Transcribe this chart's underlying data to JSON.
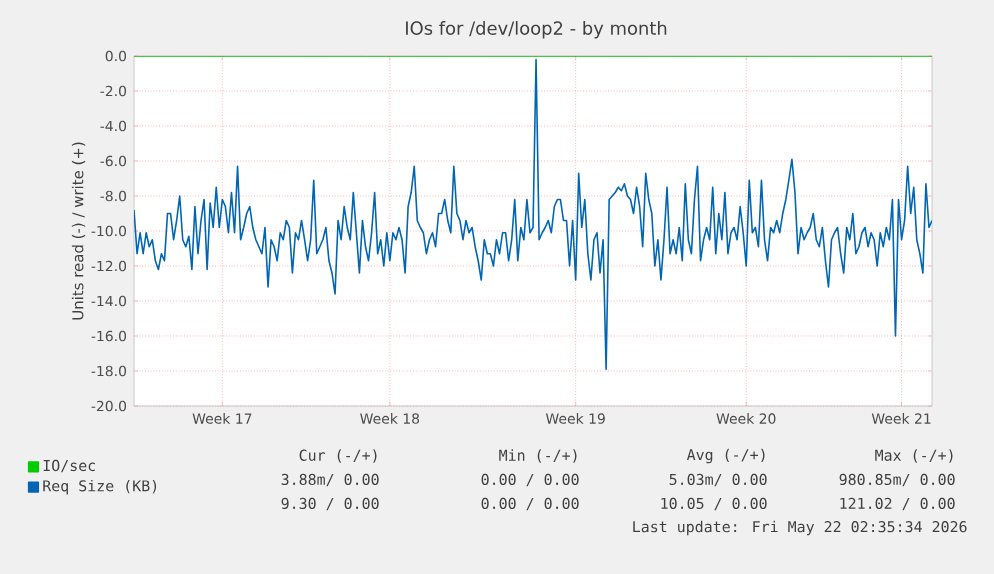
{
  "chart_data": {
    "type": "line",
    "title": "IOs for /dev/loop2 - by month",
    "ylabel": "Units read (-) / write (+)",
    "categories": [
      null,
      null,
      null,
      null,
      null,
      null,
      null,
      null,
      null,
      null,
      null,
      null,
      null,
      null,
      null,
      null,
      null,
      null,
      null,
      null,
      null,
      null,
      null,
      null,
      null,
      null,
      null,
      null,
      null,
      "Week 17",
      null,
      null,
      null,
      null,
      null,
      null,
      null,
      null,
      null,
      null,
      null,
      null,
      null,
      null,
      null,
      null,
      null,
      null,
      null,
      null,
      null,
      null,
      null,
      null,
      null,
      null,
      null,
      null,
      null,
      null,
      null,
      null,
      null,
      null,
      null,
      null,
      null,
      null,
      null,
      null,
      null,
      null,
      null,
      null,
      null,
      null,
      null,
      null,
      null,
      null,
      null,
      null,
      null,
      null,
      "Week 18",
      null,
      null,
      null,
      null,
      null,
      null,
      null,
      null,
      null,
      null,
      null,
      null,
      null,
      null,
      null,
      null,
      null,
      null,
      null,
      null,
      null,
      null,
      null,
      null,
      null,
      null,
      null,
      null,
      null,
      null,
      null,
      null,
      null,
      null,
      null,
      null,
      null,
      null,
      null,
      null,
      null,
      null,
      null,
      null,
      null,
      null,
      null,
      null,
      null,
      null,
      null,
      null,
      null,
      null,
      null,
      null,
      null,
      null,
      null,
      null,
      "Week 19",
      null,
      null,
      null,
      null,
      null,
      null,
      null,
      null,
      null,
      null,
      null,
      null,
      null,
      null,
      null,
      null,
      null,
      null,
      null,
      null,
      null,
      null,
      null,
      null,
      null,
      null,
      null,
      null,
      null,
      null,
      null,
      null,
      null,
      null,
      null,
      null,
      null,
      null,
      null,
      null,
      null,
      null,
      null,
      null,
      null,
      null,
      null,
      null,
      null,
      null,
      null,
      null,
      null,
      null,
      null,
      "Week 20",
      null,
      null,
      null,
      null,
      null,
      null,
      null,
      null,
      null,
      null,
      null,
      null,
      null,
      null,
      null,
      null,
      null,
      null,
      null,
      null,
      null,
      null,
      null,
      null,
      null,
      null,
      null,
      null,
      null,
      null,
      null,
      null,
      null,
      null,
      null,
      null,
      null,
      null,
      null,
      null,
      null,
      null,
      null,
      null,
      null,
      null,
      null,
      null,
      null,
      null,
      "Week 21",
      null,
      null,
      null,
      null,
      null,
      null,
      null,
      null,
      null,
      null
    ],
    "ylim": [
      -20,
      0
    ],
    "yticks": [
      {
        "value": 0,
        "label": "0.0"
      },
      {
        "value": -2,
        "label": "-2.0"
      },
      {
        "value": -4,
        "label": "-4.0"
      },
      {
        "value": -6,
        "label": "-6.0"
      },
      {
        "value": -8,
        "label": "-8.0"
      },
      {
        "value": -10,
        "label": "-10.0"
      },
      {
        "value": -12,
        "label": "-12.0"
      },
      {
        "value": -14,
        "label": "-14.0"
      },
      {
        "value": -16,
        "label": "-16.0"
      },
      {
        "value": -18,
        "label": "-18.0"
      },
      {
        "value": -20,
        "label": "-20.0"
      }
    ],
    "grid": true,
    "legend": "bottom",
    "series": [
      {
        "name": "IO/sec",
        "color": "#00cc00",
        "values": [
          0,
          0,
          0,
          0,
          0,
          0,
          0,
          0,
          0,
          0,
          0,
          0,
          0,
          0,
          0,
          0,
          0,
          0,
          0,
          0,
          0,
          0,
          0,
          0,
          0,
          0,
          0,
          0,
          0,
          0,
          0,
          0,
          0,
          0,
          0,
          0,
          0,
          0,
          0,
          0,
          0,
          0,
          0,
          0,
          0,
          0,
          0,
          0,
          0,
          0,
          0,
          0,
          0,
          0,
          0,
          0,
          0,
          0,
          0,
          0,
          0,
          0,
          0,
          0,
          0,
          0,
          0,
          0,
          0,
          0,
          0,
          0,
          0,
          0,
          0,
          0,
          0,
          0,
          0,
          0,
          0,
          0,
          0,
          0,
          0,
          0,
          0,
          0,
          0,
          0,
          0,
          0,
          0,
          0,
          0,
          0,
          0,
          0,
          0,
          0,
          0,
          0,
          0,
          0,
          0,
          0,
          0,
          0,
          0,
          0,
          0,
          0,
          0,
          0,
          0,
          0,
          0,
          0,
          0,
          0,
          0,
          0,
          0,
          0,
          0,
          0,
          0,
          0,
          0,
          0,
          0,
          0,
          0,
          0,
          0,
          0,
          0,
          0,
          0,
          0,
          0,
          0,
          0,
          0,
          0,
          0,
          0,
          0,
          0,
          0,
          0,
          0,
          0,
          0,
          0,
          0,
          0,
          0,
          0,
          0,
          0,
          0,
          0,
          0,
          0,
          0,
          0,
          0,
          0,
          0,
          0,
          0,
          0,
          0,
          0,
          0,
          0,
          0,
          0,
          0,
          0,
          0,
          0,
          0,
          0,
          0,
          0,
          0,
          0,
          0,
          0,
          0,
          0,
          0,
          0,
          0,
          0,
          0,
          0,
          0,
          0,
          0,
          0,
          0,
          0,
          0,
          0,
          0,
          0,
          0,
          0,
          0,
          0,
          0,
          0,
          0,
          0,
          0,
          0,
          0,
          0,
          0,
          0,
          0,
          0,
          0,
          0,
          0,
          0,
          0,
          0,
          0,
          0,
          0,
          0,
          0,
          0,
          0,
          0,
          0,
          0,
          0,
          0,
          0,
          0,
          0,
          0,
          0,
          0,
          0,
          0,
          0,
          0,
          0,
          0,
          0,
          0,
          0,
          0,
          0,
          0,
          0,
          0
        ]
      },
      {
        "name": "Req Size (KB)",
        "color": "#0066b3",
        "values": [
          -8.8,
          -11.3,
          -10.1,
          -11.3,
          -10.1,
          -10.9,
          -10.5,
          -11.7,
          -12.2,
          -11.3,
          -11.7,
          -9.0,
          -9.0,
          -10.5,
          -9.4,
          -8.0,
          -10.5,
          -10.9,
          -10.3,
          -12.2,
          -8.6,
          -11.3,
          -9.4,
          -8.2,
          -12.2,
          -8.4,
          -9.8,
          -7.5,
          -9.8,
          -8.2,
          -8.6,
          -10.1,
          -7.8,
          -10.1,
          -6.3,
          -10.5,
          -9.8,
          -9.0,
          -8.6,
          -9.8,
          -10.5,
          -10.9,
          -11.3,
          -9.8,
          -13.2,
          -10.5,
          -10.9,
          -11.7,
          -10.1,
          -10.5,
          -9.4,
          -9.8,
          -12.4,
          -10.1,
          -10.5,
          -9.4,
          -10.5,
          -11.7,
          -10.5,
          -7.1,
          -11.3,
          -10.9,
          -10.5,
          -9.8,
          -11.7,
          -12.4,
          -13.6,
          -9.4,
          -10.5,
          -8.6,
          -9.8,
          -10.5,
          -7.8,
          -10.1,
          -12.4,
          -9.4,
          -10.9,
          -11.7,
          -10.1,
          -7.8,
          -11.3,
          -10.5,
          -12.0,
          -10.1,
          -11.7,
          -10.1,
          -10.5,
          -9.8,
          -10.5,
          -12.4,
          -8.6,
          -7.8,
          -6.3,
          -9.4,
          -9.8,
          -10.1,
          -11.3,
          -10.5,
          -10.1,
          -10.9,
          -9.0,
          -9.0,
          -8.2,
          -9.4,
          -10.1,
          -6.3,
          -9.0,
          -9.4,
          -10.5,
          -9.4,
          -10.1,
          -9.8,
          -10.9,
          -11.7,
          -12.8,
          -10.5,
          -11.3,
          -11.3,
          -12.0,
          -10.5,
          -11.3,
          -10.1,
          -10.1,
          -11.7,
          -10.5,
          -8.2,
          -11.7,
          -9.8,
          -10.5,
          -8.2,
          -10.1,
          -9.8,
          -0.2,
          -10.5,
          -10.1,
          -9.8,
          -9.4,
          -10.1,
          -8.6,
          -8.2,
          -8.2,
          -9.4,
          -9.4,
          -12.0,
          -9.4,
          -12.8,
          -6.7,
          -9.8,
          -8.2,
          -11.3,
          -12.8,
          -10.5,
          -10.1,
          -12.4,
          -10.5,
          -17.9,
          -8.2,
          -8.0,
          -7.8,
          -7.5,
          -7.7,
          -7.3,
          -8.0,
          -8.2,
          -9.0,
          -7.5,
          -8.6,
          -10.9,
          -6.7,
          -8.2,
          -9.0,
          -12.0,
          -10.5,
          -12.8,
          -10.5,
          -7.5,
          -11.3,
          -10.5,
          -11.3,
          -9.8,
          -11.7,
          -7.3,
          -10.5,
          -11.3,
          -8.2,
          -6.3,
          -11.7,
          -10.5,
          -9.8,
          -10.5,
          -7.5,
          -11.3,
          -9.0,
          -10.5,
          -7.8,
          -11.3,
          -10.1,
          -9.8,
          -10.5,
          -8.6,
          -10.1,
          -12.0,
          -7.1,
          -10.1,
          -9.8,
          -10.9,
          -7.1,
          -10.5,
          -11.7,
          -9.8,
          -10.1,
          -9.4,
          -10.1,
          -9.0,
          -8.2,
          -7.1,
          -5.9,
          -7.8,
          -11.3,
          -9.8,
          -10.5,
          -10.1,
          -9.8,
          -9.0,
          -10.5,
          -10.9,
          -9.8,
          -11.7,
          -13.2,
          -10.5,
          -10.1,
          -9.8,
          -11.3,
          -12.4,
          -9.8,
          -10.5,
          -9.0,
          -11.3,
          -10.9,
          -10.1,
          -9.8,
          -10.9,
          -10.1,
          -10.5,
          -12.0,
          -10.1,
          -10.9,
          -9.8,
          -10.5,
          -8.2,
          -16.0,
          -8.2,
          -10.5,
          -9.4,
          -6.3,
          -9.0,
          -7.5,
          -10.5,
          -11.3,
          -12.4,
          -7.3,
          -9.8,
          -9.4
        ]
      }
    ],
    "annotations": [
      "Cur (-/+)",
      "Min (-/+)",
      "Avg (-/+)",
      "Max (-/+)",
      "3.88m/ 0.00",
      "0.00 / 0.00",
      "5.03m/ 0.00",
      "980.85m/ 0.00",
      "9.30 / 0.00",
      "0.00 / 0.00",
      "10.05 / 0.00",
      "121.02 / 0.00",
      "Last update: Fri May 22 02:35:34 2026"
    ]
  }
}
